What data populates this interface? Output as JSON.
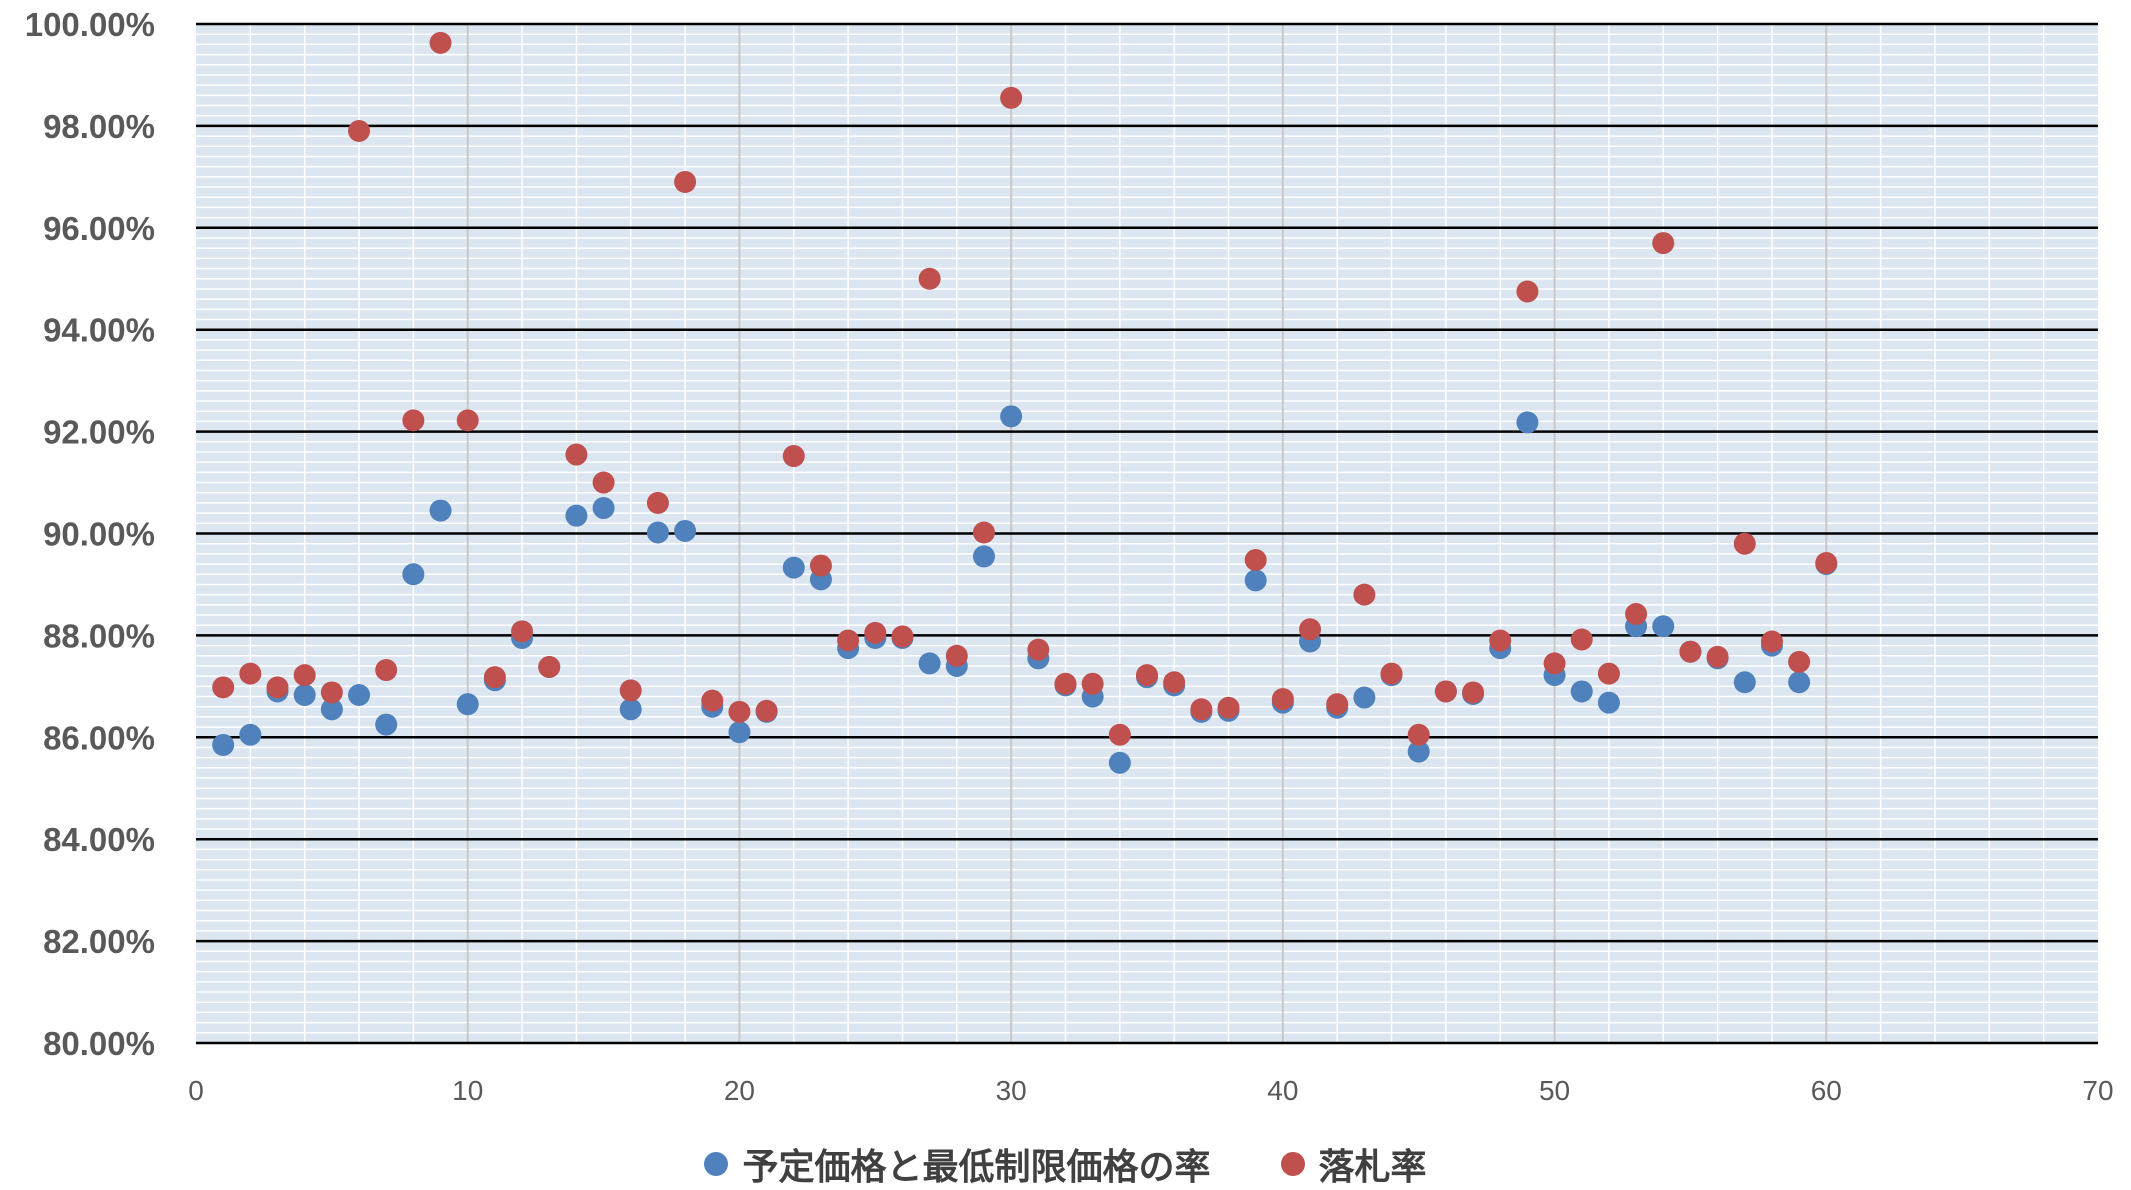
{
  "chart_data": {
    "type": "scatter",
    "xlim": [
      0,
      70
    ],
    "ylim": [
      0.8,
      1.0
    ],
    "x_ticks": [
      "0",
      "10",
      "20",
      "30",
      "40",
      "50",
      "60",
      "70"
    ],
    "y_ticks": [
      "80.00%",
      "82.00%",
      "84.00%",
      "86.00%",
      "88.00%",
      "90.00%",
      "92.00%",
      "94.00%",
      "96.00%",
      "98.00%",
      "100.00%"
    ],
    "grid": "major and minor",
    "legend_position": "bottom",
    "plot_background": "#dce6f1",
    "series": [
      {
        "name": "予定価格と最低制限価格の率",
        "color": "#4f81bd",
        "x": [
          1,
          2,
          3,
          4,
          5,
          6,
          7,
          8,
          9,
          10,
          11,
          12,
          13,
          14,
          15,
          16,
          17,
          18,
          19,
          20,
          21,
          22,
          23,
          24,
          25,
          26,
          27,
          28,
          29,
          30,
          31,
          32,
          33,
          34,
          35,
          36,
          37,
          38,
          39,
          40,
          41,
          42,
          43,
          44,
          45,
          46,
          47,
          48,
          49,
          50,
          51,
          52,
          53,
          54,
          55,
          56,
          57,
          58,
          59,
          60
        ],
        "y": [
          0.8585,
          0.8605,
          0.869,
          0.8683,
          0.8655,
          0.8683,
          0.8625,
          0.892,
          0.9045,
          0.8665,
          0.8712,
          0.8795,
          0.8738,
          0.9035,
          0.905,
          0.8655,
          0.9002,
          0.9005,
          0.866,
          0.861,
          0.865,
          0.8933,
          0.891,
          0.8775,
          0.8795,
          0.8795,
          0.8745,
          0.874,
          0.8955,
          0.923,
          0.8755,
          0.8702,
          0.868,
          0.855,
          0.8718,
          0.8702,
          0.865,
          0.8652,
          0.8908,
          0.8668,
          0.8788,
          0.8658,
          0.8678,
          0.8722,
          0.8572,
          0.869,
          0.8685,
          0.8775,
          0.9218,
          0.8722,
          0.869,
          0.8668,
          0.8818,
          0.8818,
          0.8768,
          0.8755,
          0.8708,
          0.878,
          0.8708,
          0.894
        ]
      },
      {
        "name": "落札率",
        "color": "#c0504d",
        "x": [
          1,
          2,
          3,
          4,
          5,
          6,
          7,
          8,
          9,
          10,
          11,
          12,
          13,
          14,
          15,
          16,
          17,
          18,
          19,
          20,
          21,
          22,
          23,
          24,
          25,
          26,
          27,
          28,
          29,
          30,
          31,
          32,
          33,
          34,
          35,
          36,
          37,
          38,
          39,
          40,
          41,
          42,
          43,
          44,
          45,
          46,
          47,
          48,
          49,
          50,
          51,
          52,
          53,
          54,
          55,
          56,
          57,
          58,
          59,
          60
        ],
        "y": [
          0.8698,
          0.8725,
          0.8698,
          0.8722,
          0.8688,
          0.979,
          0.8732,
          0.9222,
          0.9963,
          0.9222,
          0.8718,
          0.8808,
          0.8738,
          0.9155,
          0.91,
          0.8692,
          0.906,
          0.969,
          0.8672,
          0.865,
          0.8652,
          0.9152,
          0.8937,
          0.879,
          0.8805,
          0.8798,
          0.95,
          0.876,
          0.9002,
          0.9855,
          0.8772,
          0.8705,
          0.8705,
          0.8605,
          0.8722,
          0.8708,
          0.8655,
          0.8658,
          0.8948,
          0.8675,
          0.8812,
          0.8665,
          0.888,
          0.8725,
          0.8605,
          0.869,
          0.8688,
          0.879,
          0.9475,
          0.8745,
          0.8792,
          0.8725,
          0.8842,
          0.957,
          0.8768,
          0.8758,
          0.898,
          0.8788,
          0.8748,
          0.8942
        ]
      }
    ]
  }
}
